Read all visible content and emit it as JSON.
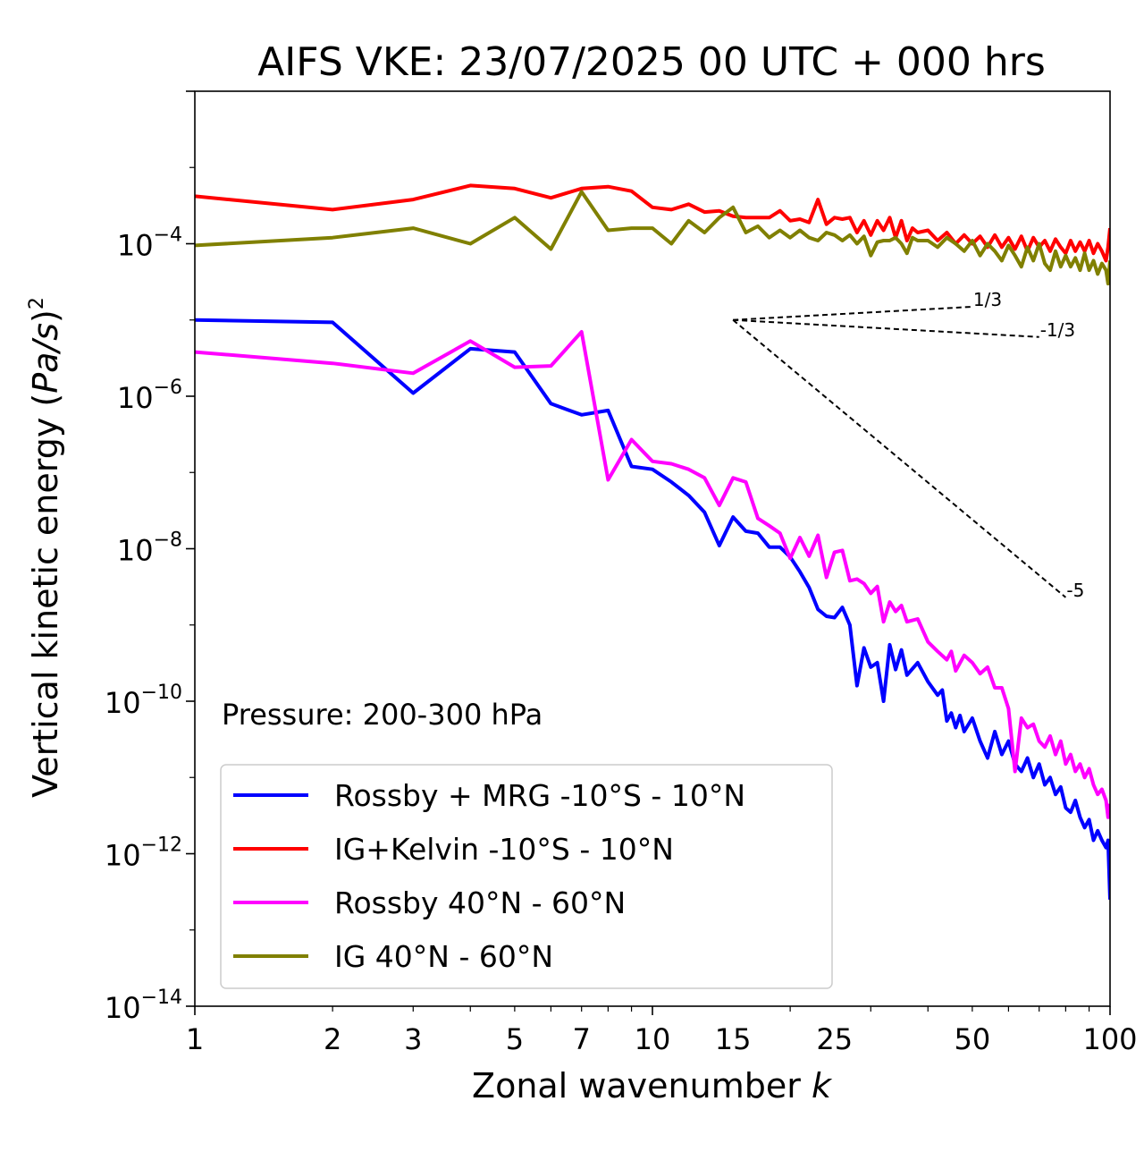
{
  "chart_data": {
    "type": "line",
    "title": "AIFS VKE: 23/07/2025 00 UTC + 000 hrs",
    "xlabel_text": "Zonal wavenumber ",
    "xlabel_var": "k",
    "ylabel_text": "Vertical kinetic energy (",
    "ylabel_var": "Pa/s",
    "ylabel_close": ")",
    "ylabel_exp": "2",
    "xscale": "log",
    "yscale": "log",
    "xlim": [
      1,
      100
    ],
    "ylim": [
      1e-14,
      0.01
    ],
    "xticks": [
      {
        "value": 1,
        "label": "1"
      },
      {
        "value": 2,
        "label": "2"
      },
      {
        "value": 3,
        "label": "3"
      },
      {
        "value": 5,
        "label": "5"
      },
      {
        "value": 7,
        "label": "7"
      },
      {
        "value": 10,
        "label": "10"
      },
      {
        "value": 15,
        "label": "15"
      },
      {
        "value": 25,
        "label": "25"
      },
      {
        "value": 50,
        "label": "50"
      },
      {
        "value": 100,
        "label": "100"
      }
    ],
    "yticks": [
      {
        "exp": -4,
        "base": "10",
        "sup": "−4"
      },
      {
        "exp": -6,
        "base": "10",
        "sup": "−6"
      },
      {
        "exp": -8,
        "base": "10",
        "sup": "−8"
      },
      {
        "exp": -10,
        "base": "10",
        "sup": "−10"
      },
      {
        "exp": -12,
        "base": "10",
        "sup": "−12"
      },
      {
        "exp": -14,
        "base": "10",
        "sup": "−14"
      }
    ],
    "annotation": "Pressure: 200-300 hPa",
    "legend_location": "lower-left",
    "reference_slopes": [
      {
        "label": "1/3",
        "from": [
          15,
          1e-05
        ],
        "to": [
          50,
          1.49e-05
        ]
      },
      {
        "label": "-1/3",
        "from": [
          15,
          1e-05
        ],
        "to": [
          70,
          5.98e-06
        ]
      },
      {
        "label": "-5",
        "from": [
          15,
          1e-05
        ],
        "to": [
          80,
          2.3e-09
        ]
      }
    ],
    "series": [
      {
        "name": "Rossby + MRG -10°S - 10°N",
        "color": "#0000ff",
        "points": [
          [
            1,
            1e-05
          ],
          [
            2,
            9.3e-06
          ],
          [
            3,
            1.1e-06
          ],
          [
            4,
            4.2e-06
          ],
          [
            5,
            3.8e-06
          ],
          [
            6,
            8e-07
          ],
          [
            7,
            5.7e-07
          ],
          [
            8,
            6.5e-07
          ],
          [
            9,
            1.2e-07
          ],
          [
            10,
            1.1e-07
          ],
          [
            11,
            7.5e-08
          ],
          [
            12,
            5e-08
          ],
          [
            13,
            3e-08
          ],
          [
            14,
            1.1e-08
          ],
          [
            15,
            2.6e-08
          ],
          [
            16,
            1.7e-08
          ],
          [
            17,
            1.6e-08
          ],
          [
            18,
            1.05e-08
          ],
          [
            19,
            1.05e-08
          ],
          [
            20,
            7.8e-09
          ],
          [
            21,
            5e-09
          ],
          [
            22,
            3.1e-09
          ],
          [
            23,
            1.6e-09
          ],
          [
            24,
            1.3e-09
          ],
          [
            25,
            1.25e-09
          ],
          [
            26,
            1.7e-09
          ],
          [
            27,
            1e-09
          ],
          [
            28,
            1.6e-10
          ],
          [
            29,
            5e-10
          ],
          [
            30,
            2.8e-10
          ],
          [
            31,
            3.2e-10
          ],
          [
            32,
            1e-10
          ],
          [
            33,
            5.5e-10
          ],
          [
            34,
            2.6e-10
          ],
          [
            35,
            4.7e-10
          ],
          [
            36,
            2.2e-10
          ],
          [
            38,
            3.2e-10
          ],
          [
            40,
            1.8e-10
          ],
          [
            42,
            1.2e-10
          ],
          [
            43,
            1.4e-10
          ],
          [
            44,
            5.5e-11
          ],
          [
            45,
            7e-11
          ],
          [
            46,
            4.5e-11
          ],
          [
            47,
            6.5e-11
          ],
          [
            48,
            4e-11
          ],
          [
            50,
            6e-11
          ],
          [
            52,
            3e-11
          ],
          [
            54,
            1.8e-11
          ],
          [
            56,
            4e-11
          ],
          [
            58,
            2e-11
          ],
          [
            60,
            3e-11
          ],
          [
            62,
            1.5e-11
          ],
          [
            64,
            1.2e-11
          ],
          [
            66,
            1.8e-11
          ],
          [
            68,
            1e-11
          ],
          [
            70,
            1.5e-11
          ],
          [
            72,
            8e-12
          ],
          [
            74,
            1e-11
          ],
          [
            76,
            6e-12
          ],
          [
            78,
            7.5e-12
          ],
          [
            80,
            4e-12
          ],
          [
            82,
            3.5e-12
          ],
          [
            84,
            5e-12
          ],
          [
            86,
            3e-12
          ],
          [
            88,
            2.2e-12
          ],
          [
            90,
            2.8e-12
          ],
          [
            92,
            1.5e-12
          ],
          [
            94,
            2e-12
          ],
          [
            96,
            1.5e-12
          ],
          [
            98,
            1.2e-12
          ],
          [
            99,
            1.5e-12
          ],
          [
            100,
            2.5e-13
          ]
        ]
      },
      {
        "name": "IG+Kelvin -10°S - 10°N",
        "color": "#ff0000",
        "points": [
          [
            1,
            0.00042
          ],
          [
            2,
            0.00028
          ],
          [
            3,
            0.00038
          ],
          [
            4,
            0.00058
          ],
          [
            5,
            0.00053
          ],
          [
            6,
            0.0004
          ],
          [
            7,
            0.00053
          ],
          [
            8,
            0.00056
          ],
          [
            9,
            0.00049
          ],
          [
            10,
            0.0003
          ],
          [
            11,
            0.00028
          ],
          [
            12,
            0.00033
          ],
          [
            13,
            0.00026
          ],
          [
            14,
            0.00027
          ],
          [
            15,
            0.00023
          ],
          [
            16,
            0.00022
          ],
          [
            18,
            0.00022
          ],
          [
            19,
            0.00027
          ],
          [
            20,
            0.0002
          ],
          [
            21,
            0.00021
          ],
          [
            22,
            0.00019
          ],
          [
            23,
            0.00038
          ],
          [
            24,
            0.00018
          ],
          [
            25,
            0.00022
          ],
          [
            26,
            0.00021
          ],
          [
            27,
            0.00022
          ],
          [
            28,
            0.00014
          ],
          [
            29,
            0.0002
          ],
          [
            30,
            0.00013
          ],
          [
            31,
            0.0002
          ],
          [
            32,
            0.00015
          ],
          [
            33,
            0.00022
          ],
          [
            34,
            0.00012
          ],
          [
            35,
            0.0002
          ],
          [
            36,
            0.00011
          ],
          [
            37,
            0.00016
          ],
          [
            38,
            0.00014
          ],
          [
            40,
            0.00015
          ],
          [
            42,
            0.00011
          ],
          [
            44,
            0.00014
          ],
          [
            46,
            0.0001
          ],
          [
            48,
            0.00013
          ],
          [
            50,
            0.0001
          ],
          [
            52,
            0.000125
          ],
          [
            54,
            9e-05
          ],
          [
            56,
            0.00013
          ],
          [
            58,
            9e-05
          ],
          [
            60,
            0.00012
          ],
          [
            62,
            8.5e-05
          ],
          [
            64,
            0.000125
          ],
          [
            66,
            8e-05
          ],
          [
            68,
            0.00012
          ],
          [
            70,
            9e-05
          ],
          [
            72,
            0.00011
          ],
          [
            74,
            8e-05
          ],
          [
            76,
            0.000115
          ],
          [
            78,
            9e-05
          ],
          [
            80,
            7.5e-05
          ],
          [
            82,
            0.00011
          ],
          [
            84,
            8e-05
          ],
          [
            86,
            0.000105
          ],
          [
            88,
            8e-05
          ],
          [
            90,
            0.00011
          ],
          [
            92,
            7.5e-05
          ],
          [
            94,
            0.0001
          ],
          [
            96,
            8e-05
          ],
          [
            98,
            6e-05
          ],
          [
            99,
            9e-05
          ],
          [
            100,
            0.00016
          ]
        ]
      },
      {
        "name": "Rossby 40°N - 60°N",
        "color": "#ff00ff",
        "points": [
          [
            1,
            3.8e-06
          ],
          [
            2,
            2.7e-06
          ],
          [
            3,
            2e-06
          ],
          [
            4,
            5.3e-06
          ],
          [
            5,
            2.4e-06
          ],
          [
            6,
            2.5e-06
          ],
          [
            7,
            7e-06
          ],
          [
            8,
            8e-08
          ],
          [
            9,
            2.7e-07
          ],
          [
            10,
            1.4e-07
          ],
          [
            11,
            1.3e-07
          ],
          [
            12,
            1.1e-07
          ],
          [
            13,
            8.5e-08
          ],
          [
            14,
            3.7e-08
          ],
          [
            15,
            8.5e-08
          ],
          [
            16,
            7.5e-08
          ],
          [
            17,
            2.5e-08
          ],
          [
            18,
            2e-08
          ],
          [
            19,
            1.6e-08
          ],
          [
            20,
            7.5e-09
          ],
          [
            21,
            1.4e-08
          ],
          [
            22,
            8e-09
          ],
          [
            23,
            1.5e-08
          ],
          [
            24,
            4.2e-09
          ],
          [
            25,
            9e-09
          ],
          [
            26,
            9.5e-09
          ],
          [
            27,
            3.8e-09
          ],
          [
            28,
            4e-09
          ],
          [
            29,
            3.5e-09
          ],
          [
            30,
            2.6e-09
          ],
          [
            31,
            3.2e-09
          ],
          [
            32,
            1.1e-09
          ],
          [
            33,
            2e-09
          ],
          [
            34,
            1.5e-09
          ],
          [
            35,
            1.8e-09
          ],
          [
            36,
            1.1e-09
          ],
          [
            38,
            1.2e-09
          ],
          [
            40,
            6e-10
          ],
          [
            42,
            4.5e-10
          ],
          [
            44,
            3.5e-10
          ],
          [
            45,
            4.5e-10
          ],
          [
            46,
            2.5e-10
          ],
          [
            48,
            4e-10
          ],
          [
            50,
            3.2e-10
          ],
          [
            52,
            2.3e-10
          ],
          [
            54,
            2.8e-10
          ],
          [
            56,
            1.5e-10
          ],
          [
            58,
            1.5e-10
          ],
          [
            60,
            8e-11
          ],
          [
            62,
            1.2e-11
          ],
          [
            64,
            6e-11
          ],
          [
            66,
            4.5e-11
          ],
          [
            68,
            5e-11
          ],
          [
            70,
            3e-11
          ],
          [
            72,
            2.5e-11
          ],
          [
            74,
            3.5e-11
          ],
          [
            76,
            2e-11
          ],
          [
            78,
            3e-11
          ],
          [
            80,
            1.5e-11
          ],
          [
            82,
            2e-11
          ],
          [
            84,
            1.2e-11
          ],
          [
            86,
            1.5e-11
          ],
          [
            88,
            1e-11
          ],
          [
            90,
            1.3e-11
          ],
          [
            92,
            8e-12
          ],
          [
            94,
            6e-12
          ],
          [
            96,
            7e-12
          ],
          [
            98,
            5e-12
          ],
          [
            99,
            3e-12
          ],
          [
            100,
            4.5e-12
          ]
        ]
      },
      {
        "name": "IG 40°N - 60°N",
        "color": "#808000",
        "points": [
          [
            1,
            9.5e-05
          ],
          [
            2,
            0.00012
          ],
          [
            3,
            0.00016
          ],
          [
            4,
            0.0001
          ],
          [
            5,
            0.00022
          ],
          [
            6,
            8.5e-05
          ],
          [
            7,
            0.00048
          ],
          [
            8,
            0.00015
          ],
          [
            9,
            0.00016
          ],
          [
            10,
            0.00016
          ],
          [
            11,
            0.0001
          ],
          [
            12,
            0.0002
          ],
          [
            13,
            0.00014
          ],
          [
            14,
            0.00022
          ],
          [
            15,
            0.0003
          ],
          [
            16,
            0.00014
          ],
          [
            17,
            0.00017
          ],
          [
            18,
            0.00012
          ],
          [
            19,
            0.00015
          ],
          [
            20,
            0.00012
          ],
          [
            21,
            0.00015
          ],
          [
            22,
            0.00012
          ],
          [
            23,
            0.00011
          ],
          [
            24,
            0.00014
          ],
          [
            25,
            0.00013
          ],
          [
            26,
            0.00011
          ],
          [
            27,
            0.00013
          ],
          [
            28,
            0.0001
          ],
          [
            29,
            0.000125
          ],
          [
            30,
            7e-05
          ],
          [
            31,
            0.000105
          ],
          [
            32,
            0.00011
          ],
          [
            33,
            0.00011
          ],
          [
            34,
            0.00012
          ],
          [
            35,
            0.0001
          ],
          [
            36,
            7.5e-05
          ],
          [
            37,
            0.00012
          ],
          [
            38,
            0.00011
          ],
          [
            40,
            0.00011
          ],
          [
            42,
            9e-05
          ],
          [
            44,
            0.00012
          ],
          [
            46,
            0.0001
          ],
          [
            48,
            8e-05
          ],
          [
            50,
            0.00011
          ],
          [
            52,
            7e-05
          ],
          [
            54,
            0.0001
          ],
          [
            56,
            8e-05
          ],
          [
            58,
            6e-05
          ],
          [
            60,
            9.5e-05
          ],
          [
            62,
            7e-05
          ],
          [
            64,
            5e-05
          ],
          [
            66,
            9e-05
          ],
          [
            68,
            6e-05
          ],
          [
            70,
            0.0001
          ],
          [
            72,
            5.5e-05
          ],
          [
            74,
            4.5e-05
          ],
          [
            76,
            8e-05
          ],
          [
            78,
            5e-05
          ],
          [
            80,
            7e-05
          ],
          [
            82,
            5e-05
          ],
          [
            84,
            6.5e-05
          ],
          [
            86,
            4.5e-05
          ],
          [
            88,
            7.5e-05
          ],
          [
            90,
            4.5e-05
          ],
          [
            92,
            6e-05
          ],
          [
            94,
            4e-05
          ],
          [
            96,
            5.5e-05
          ],
          [
            98,
            4.5e-05
          ],
          [
            99,
            3e-05
          ],
          [
            100,
            6e-05
          ]
        ]
      }
    ]
  }
}
